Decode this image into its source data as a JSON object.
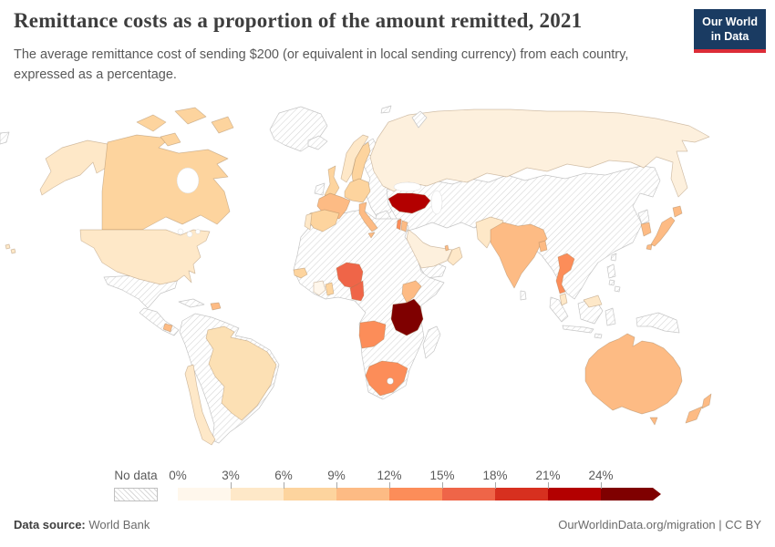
{
  "header": {
    "title": "Remittance costs as a proportion of the amount remitted, 2021",
    "subtitle": "The average remittance cost of sending $200 (or equivalent in local sending currency) from each country, expressed as a percentage.",
    "logo": {
      "line1": "Our World",
      "line2": "in Data",
      "bg_color": "#1a3b62",
      "accent_color": "#dc2c37"
    }
  },
  "legend": {
    "no_data_label": "No data",
    "ticks": [
      "0%",
      "3%",
      "6%",
      "9%",
      "12%",
      "15%",
      "18%",
      "21%",
      "24%"
    ],
    "colors": [
      "#fff7ec",
      "#fee8c8",
      "#fdd49e",
      "#fdbb84",
      "#fc8d59",
      "#ef6548",
      "#d7301f",
      "#b30000",
      "#7f0000"
    ]
  },
  "footer": {
    "source_label": "Data source:",
    "source_value": "World Bank",
    "credit": "OurWorldinData.org/migration | CC BY"
  },
  "chart_data": {
    "type": "choropleth",
    "title": "Remittance costs as a proportion of the amount remitted, 2021",
    "unit": "%",
    "bin_edges": [
      0,
      3,
      6,
      9,
      12,
      15,
      18,
      21,
      24
    ],
    "bin_colors": [
      "#fff7ec",
      "#fee8c8",
      "#fdd49e",
      "#fdbb84",
      "#fc8d59",
      "#ef6548",
      "#d7301f",
      "#b30000",
      "#7f0000"
    ],
    "no_data_style": "hatched",
    "countries": [
      {
        "id": "usa",
        "name": "United States",
        "bin": "3-6%",
        "color": "#fee8c8"
      },
      {
        "id": "canada",
        "name": "Canada",
        "bin": "6-9%",
        "color": "#fdd49e"
      },
      {
        "id": "costa-rica",
        "name": "Costa Rica",
        "bin": "9-12%",
        "color": "#fdbb84"
      },
      {
        "id": "dominican-republic",
        "name": "Dominican Republic",
        "bin": "9-12%",
        "color": "#fdbb84"
      },
      {
        "id": "brazil",
        "name": "Brazil",
        "bin": "3-6%",
        "color": "#fce0b4"
      },
      {
        "id": "chile",
        "name": "Chile",
        "bin": "3-6%",
        "color": "#fee8c8"
      },
      {
        "id": "uk",
        "name": "United Kingdom",
        "bin": "6-9%",
        "color": "#fdd49e"
      },
      {
        "id": "norway",
        "name": "Norway",
        "bin": "3-6%",
        "color": "#fee8c8"
      },
      {
        "id": "sweden",
        "name": "Sweden",
        "bin": "6-9%",
        "color": "#fdd49e"
      },
      {
        "id": "denmark",
        "name": "Denmark",
        "bin": "6-9%",
        "color": "#fdd49e"
      },
      {
        "id": "germany",
        "name": "Germany",
        "bin": "6-9%",
        "color": "#fdd49e"
      },
      {
        "id": "france",
        "name": "France",
        "bin": "9-12%",
        "color": "#fdbb84"
      },
      {
        "id": "spain",
        "name": "Spain",
        "bin": "6-9%",
        "color": "#fdd49e"
      },
      {
        "id": "portugal",
        "name": "Portugal",
        "bin": "3-6%",
        "color": "#fee8c8"
      },
      {
        "id": "italy",
        "name": "Italy",
        "bin": "9-12%",
        "color": "#fdbb84"
      },
      {
        "id": "russia",
        "name": "Russia",
        "bin": "0-3%",
        "color": "#fdf0dd"
      },
      {
        "id": "turkey",
        "name": "Turkey",
        "bin": "21-24%",
        "color": "#b30000"
      },
      {
        "id": "israel",
        "name": "Israel",
        "bin": "12-15%",
        "color": "#fc8d59"
      },
      {
        "id": "jordan",
        "name": "Jordan",
        "bin": "9-12%",
        "color": "#fdbb84"
      },
      {
        "id": "saudi-arabia",
        "name": "Saudi Arabia",
        "bin": "0-3%",
        "color": "#fdf0dd"
      },
      {
        "id": "oman-uae",
        "name": "Oman / UAE",
        "bin": "3-6%",
        "color": "#fee8c8"
      },
      {
        "id": "qatar",
        "name": "Qatar",
        "bin": "9-12%",
        "color": "#fdbb84"
      },
      {
        "id": "pakistan",
        "name": "Pakistan",
        "bin": "3-6%",
        "color": "#fee8c8"
      },
      {
        "id": "india",
        "name": "India",
        "bin": "9-12%",
        "color": "#fdbb84"
      },
      {
        "id": "bangladesh",
        "name": "Bangladesh",
        "bin": "9-12%",
        "color": "#fdbb84"
      },
      {
        "id": "thailand",
        "name": "Thailand",
        "bin": "12-15%",
        "color": "#fc8d59"
      },
      {
        "id": "malaysia",
        "name": "Malaysia",
        "bin": "3-6%",
        "color": "#fee8c8"
      },
      {
        "id": "japan",
        "name": "Japan",
        "bin": "9-12%",
        "color": "#fdbb84"
      },
      {
        "id": "south-korea",
        "name": "South Korea",
        "bin": "9-12%",
        "color": "#fdbb84"
      },
      {
        "id": "senegal",
        "name": "Senegal",
        "bin": "6-9%",
        "color": "#fdd49e"
      },
      {
        "id": "cote-divoire",
        "name": "Cote d'Ivoire",
        "bin": "0-3%",
        "color": "#fff7ec"
      },
      {
        "id": "ghana",
        "name": "Ghana",
        "bin": "6-9%",
        "color": "#fdd49e"
      },
      {
        "id": "nigeria",
        "name": "Nigeria",
        "bin": "15-18%",
        "color": "#ef6548"
      },
      {
        "id": "cameroon",
        "name": "Cameroon",
        "bin": "15-18%",
        "color": "#ef6548"
      },
      {
        "id": "kenya",
        "name": "Kenya",
        "bin": "9-12%",
        "color": "#fdbb84"
      },
      {
        "id": "tanzania",
        "name": "Tanzania",
        "bin": "24%+",
        "color": "#7f0000"
      },
      {
        "id": "angola",
        "name": "Angola",
        "bin": "12-15%",
        "color": "#fc8d59"
      },
      {
        "id": "south-africa",
        "name": "South Africa",
        "bin": "12-15%",
        "color": "#fc8d59"
      },
      {
        "id": "australia",
        "name": "Australia",
        "bin": "9-12%",
        "color": "#fdbb84"
      },
      {
        "id": "new-zealand",
        "name": "New Zealand",
        "bin": "9-12%",
        "color": "#fdbb84"
      }
    ]
  }
}
